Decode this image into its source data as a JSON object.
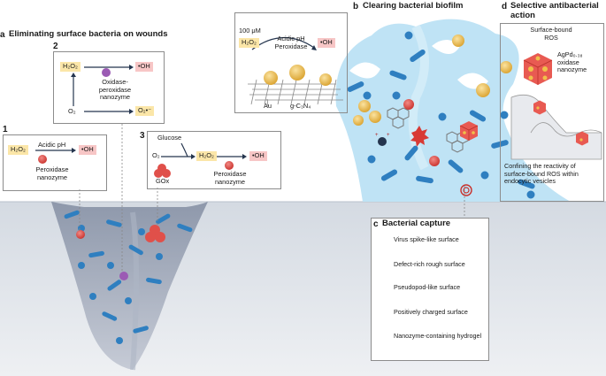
{
  "panel_a": {
    "letter": "a",
    "title": "Eliminating surface bacteria on wounds",
    "box1": {
      "num": "1",
      "substrate": "H₂O₂",
      "condition": "Acidic pH",
      "product": "•OH",
      "catalyst": "Peroxidase nanozyme"
    },
    "box2": {
      "num": "2",
      "h2o2": "H₂O₂",
      "oh": "•OH",
      "catalyst": "Oxidase-peroxidase nanozyme",
      "o2": "O₂",
      "superoxide": "O₂•⁻"
    },
    "box3": {
      "num": "3",
      "glucose": "Glucose",
      "o2": "O₂",
      "h2o2": "H₂O₂",
      "oh": "•OH",
      "gox": "GOx",
      "catalyst": "Peroxidase nanozyme"
    }
  },
  "panel_b": {
    "letter": "b",
    "title": "Clearing bacterial biofilm",
    "conc": "100 μM",
    "h2o2": "H₂O₂",
    "condition": "Acidic pH Peroxidase",
    "oh": "•OH",
    "au": "Au",
    "support": "g-C₃N₄"
  },
  "panel_c": {
    "letter": "c",
    "title": "Bacterial capture",
    "items": [
      "Virus spike-like surface",
      "Defect-rich rough surface",
      "Pseudopod-like surface",
      "Positively charged surface",
      "Nanozyme-containing hydrogel"
    ]
  },
  "panel_d": {
    "letter": "d",
    "title": "Selective antibacterial action",
    "ros": "Surface-bound ROS",
    "nanozyme": "AgPd₀.₃₈ oxidase nanozyme",
    "caption": "Confining the reactivity of surface-bound ROS within endocytic vesicles"
  },
  "colors": {
    "skin": "#dfe3e8",
    "wound": "#9aa3b4",
    "biofilm": "#bfe3f5",
    "bacteria": "#2f7fc0",
    "nanozyme": "#e0453f",
    "gold": "#e8b53a",
    "product_chip": "#f7c6c6",
    "substrate_chip": "#fbe6a8"
  }
}
